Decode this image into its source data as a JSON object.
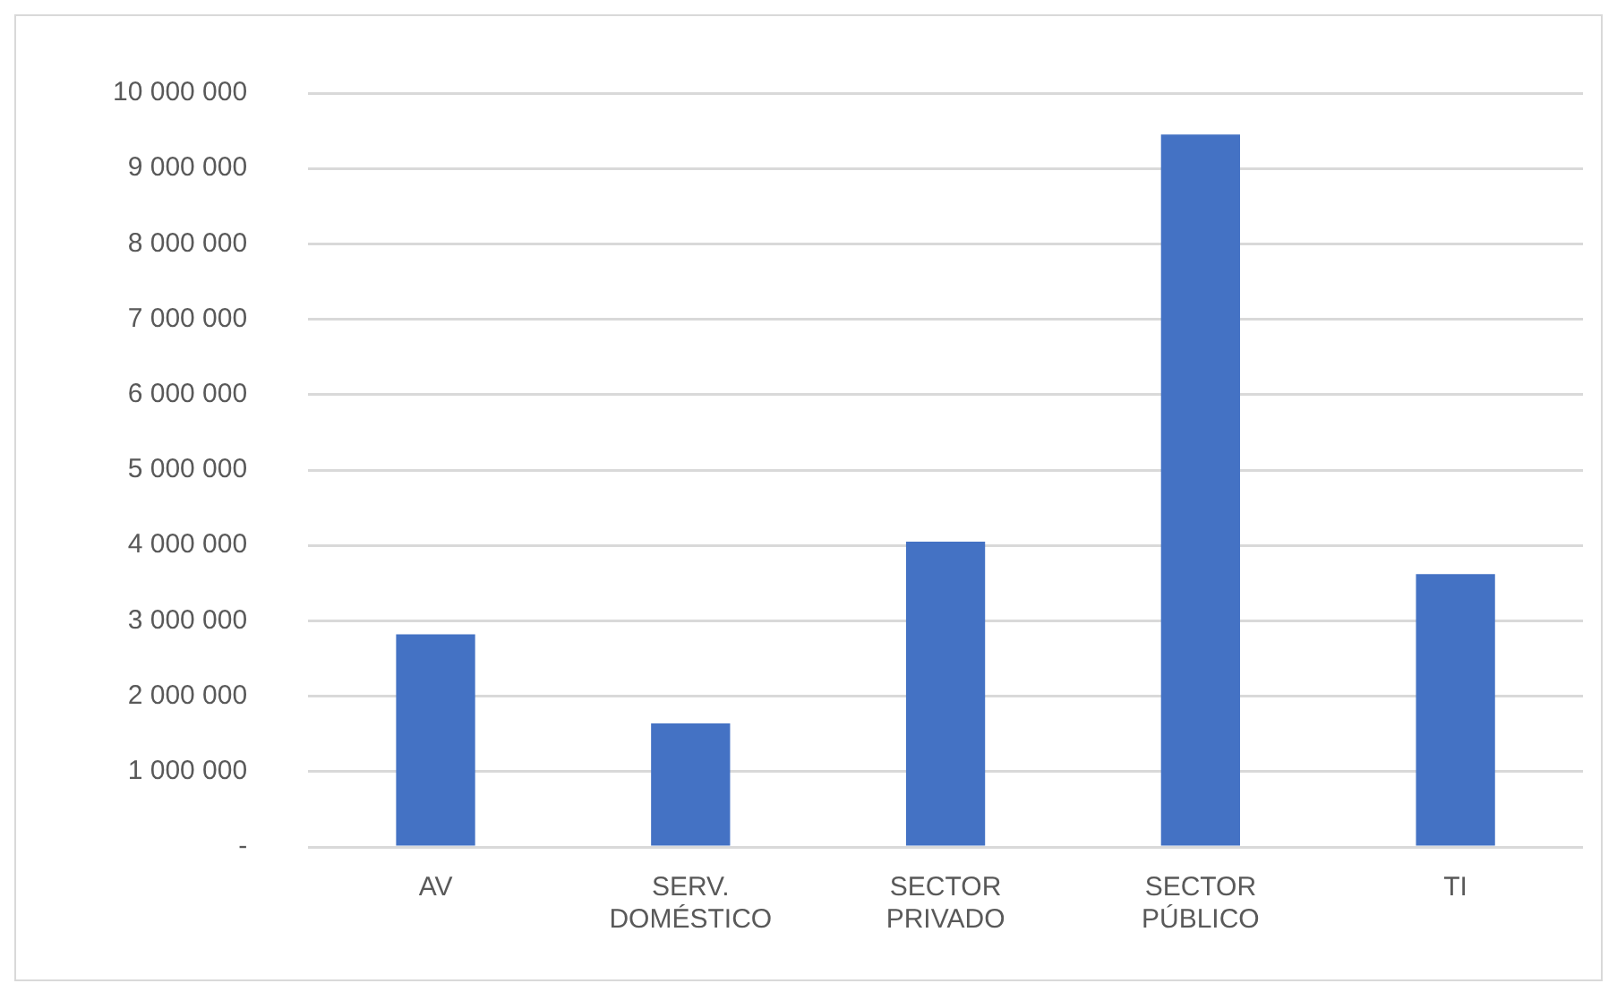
{
  "chart_data": {
    "type": "bar",
    "categories": [
      "AV",
      "SERV. DOMÉSTICO",
      "SECTOR PRIVADO",
      "SECTOR PÚBLICO",
      "TI"
    ],
    "values": [
      2820000,
      1640000,
      4050000,
      9450000,
      3620000
    ],
    "color": "#4472c4",
    "ylim": [
      0,
      10000000
    ],
    "yticks": [
      {
        "value": 0,
        "label": "-"
      },
      {
        "value": 1000000,
        "label": "1 000 000"
      },
      {
        "value": 2000000,
        "label": "2 000 000"
      },
      {
        "value": 3000000,
        "label": "3 000 000"
      },
      {
        "value": 4000000,
        "label": "4 000 000"
      },
      {
        "value": 5000000,
        "label": "5 000 000"
      },
      {
        "value": 6000000,
        "label": "6 000 000"
      },
      {
        "value": 7000000,
        "label": "7 000 000"
      },
      {
        "value": 8000000,
        "label": "8 000 000"
      },
      {
        "value": 9000000,
        "label": "9 000 000"
      },
      {
        "value": 10000000,
        "label": "10 000 000"
      }
    ],
    "grid": "y",
    "legend": false
  }
}
